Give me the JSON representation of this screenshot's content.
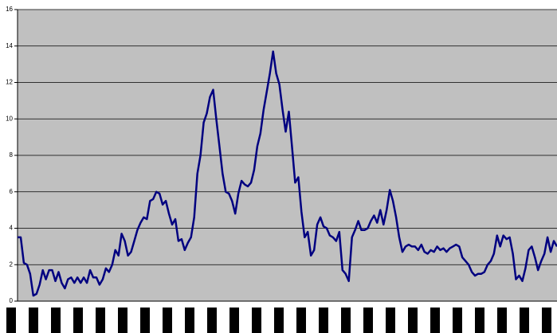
{
  "chart_data": {
    "type": "line",
    "values": [
      3.5,
      3.5,
      2.1,
      2.0,
      1.5,
      0.3,
      0.4,
      0.9,
      1.7,
      1.2,
      1.7,
      1.7,
      1.1,
      1.6,
      1.0,
      0.7,
      1.2,
      1.3,
      1.0,
      1.3,
      1.0,
      1.3,
      1.0,
      1.7,
      1.3,
      1.3,
      0.9,
      1.2,
      1.8,
      1.6,
      2.0,
      2.8,
      2.5,
      3.7,
      3.3,
      2.5,
      2.7,
      3.3,
      3.9,
      4.3,
      4.6,
      4.5,
      5.5,
      5.6,
      6.0,
      5.9,
      5.3,
      5.5,
      4.8,
      4.2,
      4.5,
      3.3,
      3.4,
      2.8,
      3.2,
      3.5,
      4.6,
      7.0,
      8.0,
      9.8,
      10.3,
      11.2,
      11.6,
      10.0,
      8.5,
      7.0,
      6.0,
      5.9,
      5.5,
      4.8,
      5.9,
      6.6,
      6.4,
      6.3,
      6.5,
      7.2,
      8.5,
      9.2,
      10.5,
      11.5,
      12.5,
      13.7,
      12.5,
      11.9,
      10.5,
      9.3,
      10.4,
      8.5,
      6.5,
      6.8,
      4.9,
      3.5,
      3.8,
      2.5,
      2.8,
      4.2,
      4.6,
      4.1,
      4.0,
      3.6,
      3.5,
      3.3,
      3.8,
      1.7,
      1.5,
      1.1,
      3.5,
      3.9,
      4.4,
      3.9,
      3.9,
      4.0,
      4.4,
      4.7,
      4.3,
      5.0,
      4.2,
      5.0,
      6.1,
      5.5,
      4.6,
      3.5,
      2.7,
      3.0,
      3.1,
      3.0,
      3.0,
      2.8,
      3.1,
      2.7,
      2.6,
      2.8,
      2.7,
      3.0,
      2.8,
      2.9,
      2.7,
      2.9,
      3.0,
      3.1,
      3.0,
      2.4,
      2.2,
      2.0,
      1.6,
      1.4,
      1.5,
      1.5,
      1.6,
      2.0,
      2.2,
      2.6,
      3.6,
      3.0,
      3.6,
      3.4,
      3.5,
      2.6,
      1.2,
      1.4,
      1.1,
      1.8,
      2.8,
      3.0,
      2.4,
      1.7,
      2.2,
      2.6,
      3.5,
      2.7,
      3.3,
      3.0
    ],
    "color": "#000080",
    "background": "#c0c0c0",
    "ylim": [
      0,
      16
    ],
    "yticks": [
      0,
      2,
      4,
      6,
      8,
      10,
      12,
      14,
      16
    ],
    "grid": true
  }
}
